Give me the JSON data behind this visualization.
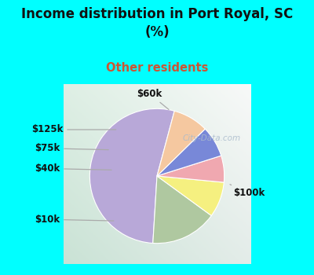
{
  "title": "Income distribution in Port Royal, SC\n(%)",
  "subtitle": "Other residents",
  "title_color": "#111111",
  "subtitle_color": "#cc5533",
  "bg_cyan": "#00FFFF",
  "labels": [
    "$100k",
    "$10k",
    "$40k",
    "$75k",
    "$125k",
    "$60k"
  ],
  "values": [
    50,
    15,
    8,
    6,
    7,
    8
  ],
  "colors": [
    "#b8a8d8",
    "#afc8a0",
    "#f5f080",
    "#f0a8b0",
    "#7888d8",
    "#f5c8a0"
  ],
  "startangle": 75,
  "wedge_edge_color": "white",
  "wedge_edge_lw": 0.8,
  "label_fontsize": 8.5,
  "label_color": "#111111",
  "line_color": "#aaaaaa",
  "watermark": "City-Data.com",
  "watermark_color": "#aabbcc"
}
